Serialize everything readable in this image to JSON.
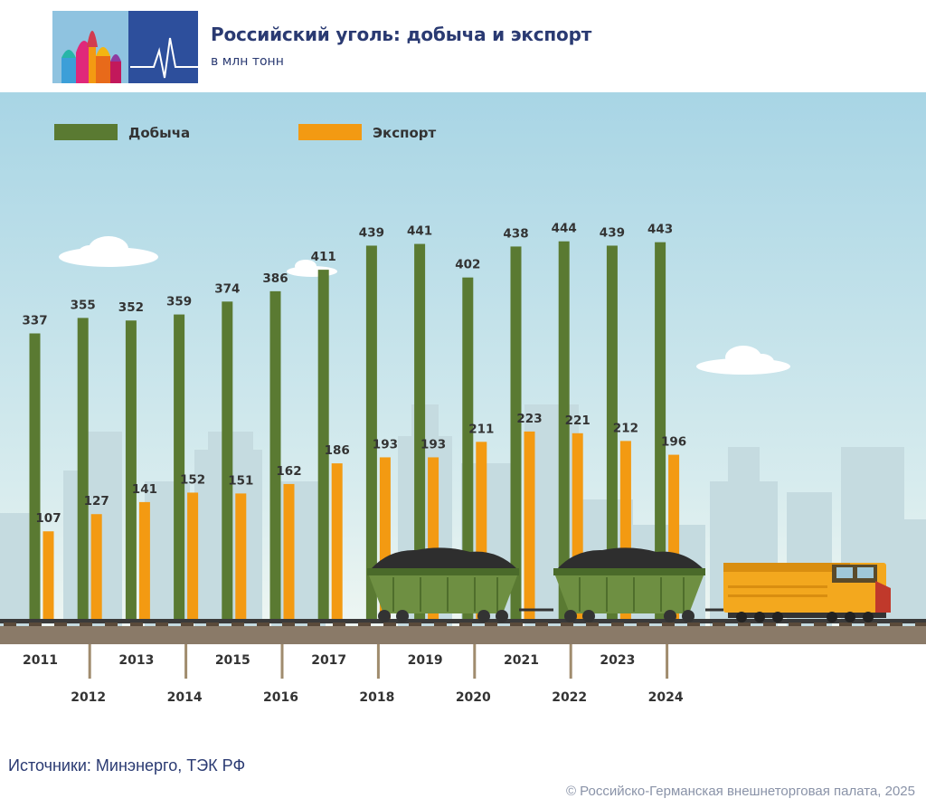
{
  "header": {
    "title": "Российский уголь: добыча и экспорт",
    "subtitle": "в млн тонн"
  },
  "footer": {
    "source": "Источники: Минэнерго, ТЭК РФ",
    "copyright": "© Российско-Германская внешнеторговая палата, 2025"
  },
  "colors": {
    "production": "#5a7a32",
    "export": "#f39a12",
    "sky_top": "#a8d5e5",
    "sky_bottom": "#e9f4f0",
    "title": "#2a3a72"
  },
  "chart_data": {
    "type": "bar",
    "title": "Российский уголь: добыча и экспорт",
    "subtitle": "в млн тонн",
    "xlabel": "",
    "ylabel": "",
    "ylim": [
      0,
      470
    ],
    "legend_position": "top-left",
    "categories": [
      "2011",
      "2012",
      "2013",
      "2014",
      "2015",
      "2016",
      "2017",
      "2018",
      "2019",
      "2020",
      "2021",
      "2022",
      "2023",
      "2024"
    ],
    "series": [
      {
        "name": "Добыча",
        "color": "#5a7a32",
        "values": [
          337,
          355,
          352,
          359,
          374,
          386,
          411,
          439,
          441,
          402,
          438,
          444,
          439,
          443
        ]
      },
      {
        "name": "Экспорт",
        "color": "#f39a12",
        "values": [
          107,
          127,
          141,
          152,
          151,
          162,
          186,
          193,
          193,
          211,
          223,
          221,
          212,
          196
        ]
      }
    ]
  }
}
